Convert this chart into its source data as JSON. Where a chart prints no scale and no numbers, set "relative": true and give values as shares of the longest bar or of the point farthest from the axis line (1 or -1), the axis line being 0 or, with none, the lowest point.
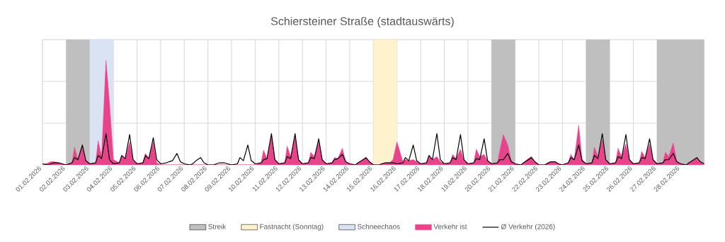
{
  "chart_data": {
    "type": "line",
    "title": "Schiersteiner Straße (stadtauswärts)",
    "relative": true,
    "grid": true,
    "legend": "bottom",
    "xlim": [
      "2026-02-01",
      "2026-03-01"
    ],
    "xticks": [
      {
        "value": "2026-02-01",
        "label": "01.02.2026"
      },
      {
        "value": "2026-02-02",
        "label": "02.02.2026"
      },
      {
        "value": "2026-02-03",
        "label": "03.02.2026"
      },
      {
        "value": "2026-02-04",
        "label": "04.02.2026"
      },
      {
        "value": "2026-02-05",
        "label": "05.02.2026"
      },
      {
        "value": "2026-02-06",
        "label": "06.02.2026"
      },
      {
        "value": "2026-02-07",
        "label": "07.02.2026"
      },
      {
        "value": "2026-02-08",
        "label": "08.02.2026"
      },
      {
        "value": "2026-02-09",
        "label": "09.02.2026"
      },
      {
        "value": "2026-02-10",
        "label": "10.02.2026"
      },
      {
        "value": "2026-02-11",
        "label": "11.02.2026"
      },
      {
        "value": "2026-02-12",
        "label": "12.02.2026"
      },
      {
        "value": "2026-02-13",
        "label": "13.02.2026"
      },
      {
        "value": "2026-02-14",
        "label": "14.02.2026"
      },
      {
        "value": "2026-02-15",
        "label": "15.02.2026"
      },
      {
        "value": "2026-02-16",
        "label": "16.02.2026"
      },
      {
        "value": "2026-02-17",
        "label": "17.02.2026"
      },
      {
        "value": "2026-02-18",
        "label": "18.02.2026"
      },
      {
        "value": "2026-02-19",
        "label": "19.02.2026"
      },
      {
        "value": "2026-02-20",
        "label": "20.02.2026"
      },
      {
        "value": "2026-02-21",
        "label": "21.02.2026"
      },
      {
        "value": "2026-02-22",
        "label": "22.02.2026"
      },
      {
        "value": "2026-02-23",
        "label": "23.02.2026"
      },
      {
        "value": "2026-02-24",
        "label": "24.02.2026"
      },
      {
        "value": "2026-02-25",
        "label": "25.02.2026"
      },
      {
        "value": "2026-02-26",
        "label": "26.02.2026"
      },
      {
        "value": "2026-02-27",
        "label": "27.02.2026"
      },
      {
        "value": "2026-02-28",
        "label": "28.02.2026"
      },
      {
        "value": "2026-03-01",
        "label": null
      }
    ],
    "bands": [
      {
        "axis": "x",
        "from": "2026-02-02",
        "to": "2026-02-03",
        "label": "Streik",
        "color": "#bfbfbf"
      },
      {
        "axis": "x",
        "from": "2026-02-15",
        "to": "2026-02-16",
        "label": "Fastnacht (Sonntag)",
        "color": "#fff2cc"
      },
      {
        "axis": "x",
        "from": "2026-02-03",
        "to": "2026-02-04",
        "label": "Schneechaos",
        "color": "#dae3f3"
      },
      {
        "axis": "x",
        "from": "2026-02-20",
        "to": "2026-02-21",
        "color": "#bfbfbf"
      },
      {
        "axis": "x",
        "from": "2026-02-24",
        "to": "2026-02-25",
        "color": "#bfbfbf"
      },
      {
        "axis": "x",
        "from": "2026-02-27",
        "to": "2026-03-01",
        "color": "#bfbfbf"
      }
    ],
    "x": [
      "2026-02-01T00:00",
      "2026-02-01T06:00",
      "2026-02-01T08:30",
      "2026-02-01T12:00",
      "2026-02-01T16:30",
      "2026-02-01T20:00",
      "2026-02-02T00:00",
      "2026-02-02T06:00",
      "2026-02-02T08:30",
      "2026-02-02T12:00",
      "2026-02-02T16:30",
      "2026-02-02T20:00",
      "2026-02-03T00:00",
      "2026-02-03T06:00",
      "2026-02-03T08:30",
      "2026-02-03T12:00",
      "2026-02-03T16:30",
      "2026-02-03T20:00",
      "2026-02-04T00:00",
      "2026-02-04T06:00",
      "2026-02-04T08:30",
      "2026-02-04T12:00",
      "2026-02-04T16:30",
      "2026-02-04T20:00",
      "2026-02-05T00:00",
      "2026-02-05T06:00",
      "2026-02-05T08:30",
      "2026-02-05T12:00",
      "2026-02-05T16:30",
      "2026-02-05T20:00",
      "2026-02-06T00:00",
      "2026-02-06T06:00",
      "2026-02-06T08:30",
      "2026-02-06T12:00",
      "2026-02-06T16:30",
      "2026-02-06T20:00",
      "2026-02-07T00:00",
      "2026-02-07T06:00",
      "2026-02-07T08:30",
      "2026-02-07T12:00",
      "2026-02-07T16:30",
      "2026-02-07T20:00",
      "2026-02-08T00:00",
      "2026-02-08T06:00",
      "2026-02-08T08:30",
      "2026-02-08T12:00",
      "2026-02-08T16:30",
      "2026-02-08T20:00",
      "2026-02-09T00:00",
      "2026-02-09T06:00",
      "2026-02-09T08:30",
      "2026-02-09T12:00",
      "2026-02-09T16:30",
      "2026-02-09T20:00",
      "2026-02-10T00:00",
      "2026-02-10T06:00",
      "2026-02-10T08:30",
      "2026-02-10T12:00",
      "2026-02-10T16:30",
      "2026-02-10T20:00",
      "2026-02-11T00:00",
      "2026-02-11T06:00",
      "2026-02-11T08:30",
      "2026-02-11T12:00",
      "2026-02-11T16:30",
      "2026-02-11T20:00",
      "2026-02-12T00:00",
      "2026-02-12T06:00",
      "2026-02-12T08:30",
      "2026-02-12T12:00",
      "2026-02-12T16:30",
      "2026-02-12T20:00",
      "2026-02-13T00:00",
      "2026-02-13T06:00",
      "2026-02-13T08:30",
      "2026-02-13T12:00",
      "2026-02-13T16:30",
      "2026-02-13T20:00",
      "2026-02-14T00:00",
      "2026-02-14T06:00",
      "2026-02-14T08:30",
      "2026-02-14T12:00",
      "2026-02-14T16:30",
      "2026-02-14T20:00",
      "2026-02-15T00:00",
      "2026-02-15T06:00",
      "2026-02-15T08:30",
      "2026-02-15T12:00",
      "2026-02-15T16:30",
      "2026-02-15T20:00",
      "2026-02-16T00:00",
      "2026-02-16T06:00",
      "2026-02-16T08:30",
      "2026-02-16T12:00",
      "2026-02-16T16:30",
      "2026-02-16T20:00",
      "2026-02-17T00:00",
      "2026-02-17T06:00",
      "2026-02-17T08:30",
      "2026-02-17T12:00",
      "2026-02-17T16:30",
      "2026-02-17T20:00",
      "2026-02-18T00:00",
      "2026-02-18T06:00",
      "2026-02-18T08:30",
      "2026-02-18T12:00",
      "2026-02-18T16:30",
      "2026-02-18T20:00",
      "2026-02-19T00:00",
      "2026-02-19T06:00",
      "2026-02-19T08:30",
      "2026-02-19T12:00",
      "2026-02-19T16:30",
      "2026-02-19T20:00",
      "2026-02-20T00:00",
      "2026-02-20T06:00",
      "2026-02-20T08:30",
      "2026-02-20T12:00",
      "2026-02-20T16:30",
      "2026-02-20T20:00",
      "2026-02-21T00:00",
      "2026-02-21T06:00",
      "2026-02-21T08:30",
      "2026-02-21T12:00",
      "2026-02-21T16:30",
      "2026-02-21T20:00",
      "2026-02-22T00:00",
      "2026-02-22T06:00",
      "2026-02-22T08:30",
      "2026-02-22T12:00",
      "2026-02-22T16:30",
      "2026-02-22T20:00",
      "2026-02-23T00:00",
      "2026-02-23T06:00",
      "2026-02-23T08:30",
      "2026-02-23T12:00",
      "2026-02-23T16:30",
      "2026-02-23T20:00",
      "2026-02-24T00:00",
      "2026-02-24T06:00",
      "2026-02-24T08:30",
      "2026-02-24T12:00",
      "2026-02-24T16:30",
      "2026-02-24T20:00",
      "2026-02-25T00:00",
      "2026-02-25T06:00",
      "2026-02-25T08:30",
      "2026-02-25T12:00",
      "2026-02-25T16:30",
      "2026-02-25T20:00",
      "2026-02-26T00:00",
      "2026-02-26T06:00",
      "2026-02-26T08:30",
      "2026-02-26T12:00",
      "2026-02-26T16:30",
      "2026-02-26T20:00",
      "2026-02-27T00:00",
      "2026-02-27T06:00",
      "2026-02-27T08:30",
      "2026-02-27T12:00",
      "2026-02-27T16:30",
      "2026-02-27T20:00",
      "2026-02-28T00:00",
      "2026-02-28T06:00",
      "2026-02-28T08:30",
      "2026-02-28T12:00",
      "2026-02-28T16:30",
      "2026-02-28T20:00",
      "2026-03-01T00:00"
    ],
    "series": [
      {
        "name": "Verkehr ist",
        "type": "area",
        "color": "#e8448c",
        "values": [
          0.0,
          0.02,
          0.03,
          0.03,
          0.02,
          0.01,
          0.0,
          0.02,
          0.17,
          0.05,
          0.17,
          0.04,
          0.01,
          0.02,
          0.23,
          0.08,
          1.0,
          0.6,
          0.05,
          0.02,
          0.08,
          0.06,
          0.22,
          0.04,
          0.01,
          0.02,
          0.11,
          0.06,
          0.22,
          0.02,
          0,
          0,
          0,
          0,
          0,
          0,
          0,
          0,
          0,
          0,
          0,
          0,
          0,
          0,
          0,
          0,
          0,
          0,
          0,
          0,
          0,
          0,
          0,
          0,
          0.0,
          0.02,
          0.14,
          0.06,
          0.28,
          0.05,
          0.01,
          0.02,
          0.18,
          0.08,
          0.27,
          0.05,
          0.01,
          0.02,
          0.12,
          0.08,
          0.22,
          0.05,
          0.01,
          0.02,
          0.07,
          0.06,
          0.16,
          0.03,
          0.01,
          0.0,
          0.02,
          0.04,
          0.07,
          0.03,
          0.0,
          0.0,
          0.01,
          0.02,
          0.02,
          0.05,
          0.22,
          0.03,
          0.05,
          0.04,
          0.05,
          0.03,
          0.01,
          0.02,
          0.08,
          0.05,
          0.08,
          0.03,
          0.01,
          0.02,
          0.1,
          0.06,
          0.15,
          0.04,
          0.01,
          0.02,
          0.15,
          0.08,
          0.1,
          0.04,
          0.01,
          0.02,
          0.14,
          0.29,
          0.19,
          0.04,
          0.01,
          0.0,
          0.02,
          0.05,
          0.08,
          0.03,
          0.0,
          0.0,
          0.02,
          0.03,
          0.03,
          0.01,
          0.0,
          0.02,
          0.1,
          0.05,
          0.38,
          0.05,
          0.01,
          0.02,
          0.17,
          0.08,
          0.24,
          0.05,
          0.01,
          0.02,
          0.16,
          0.08,
          0.2,
          0.05,
          0.01,
          0.02,
          0.13,
          0.07,
          0.2,
          0.05,
          0.01,
          0.02,
          0.12,
          0.08,
          0.21,
          0.04,
          0.01,
          0.0,
          0.02,
          0.04,
          0.07,
          0.03,
          0.0
        ]
      },
      {
        "name": "Ø Verkehr (2026)",
        "type": "line",
        "color": "#000000",
        "values": [
          0.01,
          0.0,
          0.01,
          0.02,
          0.02,
          0.01,
          0.0,
          0.02,
          0.07,
          0.05,
          0.19,
          0.04,
          0.01,
          0.02,
          0.09,
          0.06,
          0.3,
          0.05,
          0.01,
          0.02,
          0.09,
          0.06,
          0.29,
          0.05,
          0.01,
          0.02,
          0.09,
          0.06,
          0.26,
          0.05,
          0.01,
          0.02,
          0.03,
          0.04,
          0.11,
          0.03,
          0.01,
          0.0,
          0.01,
          0.04,
          0.07,
          0.02,
          0.0,
          0.0,
          0.01,
          0.02,
          0.02,
          0.01,
          0.0,
          0.01,
          0.07,
          0.04,
          0.19,
          0.04,
          0.01,
          0.02,
          0.05,
          0.06,
          0.3,
          0.05,
          0.01,
          0.02,
          0.08,
          0.06,
          0.3,
          0.05,
          0.01,
          0.02,
          0.07,
          0.06,
          0.25,
          0.05,
          0.01,
          0.02,
          0.05,
          0.06,
          0.1,
          0.03,
          0.01,
          0.0,
          0.02,
          0.04,
          0.07,
          0.03,
          0.0,
          0.0,
          0.01,
          0.02,
          0.02,
          0.02,
          0.01,
          0.02,
          0.07,
          0.04,
          0.19,
          0.04,
          0.01,
          0.02,
          0.09,
          0.05,
          0.3,
          0.05,
          0.01,
          0.02,
          0.07,
          0.05,
          0.29,
          0.05,
          0.01,
          0.02,
          0.06,
          0.05,
          0.25,
          0.04,
          0.01,
          0.02,
          0.05,
          0.05,
          0.11,
          0.03,
          0.01,
          0.0,
          0.02,
          0.04,
          0.07,
          0.03,
          0.0,
          0.0,
          0.01,
          0.03,
          0.03,
          0.01,
          0.0,
          0.02,
          0.07,
          0.05,
          0.19,
          0.04,
          0.01,
          0.02,
          0.09,
          0.06,
          0.3,
          0.05,
          0.01,
          0.02,
          0.08,
          0.06,
          0.29,
          0.05,
          0.01,
          0.02,
          0.07,
          0.06,
          0.25,
          0.05,
          0.01,
          0.02,
          0.05,
          0.05,
          0.11,
          0.03,
          0.01,
          0.0,
          0.02,
          0.04,
          0.07,
          0.03,
          0.01
        ]
      }
    ]
  }
}
